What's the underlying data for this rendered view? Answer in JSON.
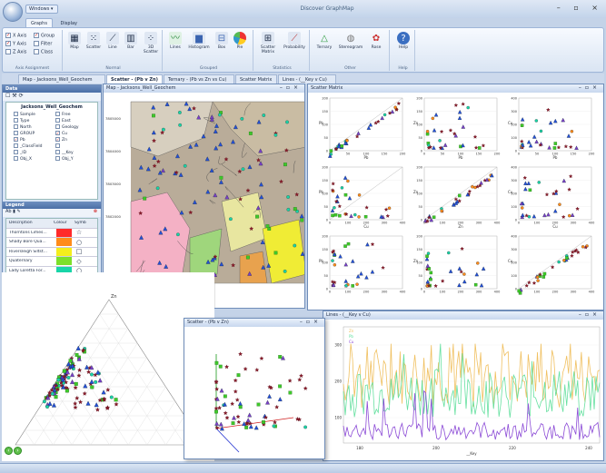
{
  "app": {
    "title": "Discover GraphMap",
    "menu_label": "Windows ▾",
    "window_controls": "– ▫ ×"
  },
  "ribbon": {
    "tabs": [
      "Graphs",
      "Display"
    ],
    "axis": {
      "checks": [
        "X Axis",
        "Y Axis",
        "Z Axis"
      ],
      "checks2": [
        "Group",
        "Filter",
        "Class"
      ],
      "label": "Axis Assignment"
    },
    "normal": {
      "items": [
        "Map",
        "Scatter",
        "Line",
        "Bar",
        "3D Scatter"
      ],
      "label": "Normal"
    },
    "grouped": {
      "items": [
        "Lines",
        "Histogram",
        "Box",
        "Pie"
      ],
      "label": "Grouped"
    },
    "statistics": {
      "items": [
        "Scatter Matrix",
        "Probability"
      ],
      "label": "Statistics"
    },
    "other": {
      "items": [
        "Ternary",
        "Stereogram",
        "Rose"
      ],
      "label": "Other"
    },
    "help": {
      "items": [
        "Help"
      ],
      "label": "Help"
    }
  },
  "doc_tabs": [
    "Map - Jacksons_Well_Geochem",
    "Scatter - (Pb v Zn)",
    "Ternary - (Pb vs Zn vs Cu)",
    "Scatter Matrix",
    "Lines - (__Key v Cu)"
  ],
  "data_panel": {
    "title": "Data",
    "dataset": "Jacksons_Well_Geochem",
    "fields": [
      [
        "Sample",
        false
      ],
      [
        "Free",
        false
      ],
      [
        "Type",
        false
      ],
      [
        "East",
        false
      ],
      [
        "North",
        false
      ],
      [
        "Geology",
        false
      ],
      [
        "GROUP",
        false
      ],
      [
        "Cu",
        true
      ],
      [
        "Pb",
        true
      ],
      [
        "Zn",
        true
      ],
      [
        "_ClassField",
        false
      ],
      [
        "",
        false
      ],
      [
        "_ID",
        false
      ],
      [
        "__Key",
        false
      ],
      [
        "Obj_X",
        false
      ],
      [
        "Obj_Y",
        false
      ]
    ]
  },
  "legend": {
    "title": "Legend",
    "col_desc": "Description",
    "col_colour": "Colour",
    "col_sym": "Symb",
    "rows": [
      {
        "desc": "Thorntons Limes...",
        "color": "#ff2a2a",
        "sym": "☆"
      },
      {
        "desc": "Shady Bore Qua...",
        "color": "#ff8c1a",
        "sym": "○"
      },
      {
        "desc": "Riversleigh Siltst...",
        "color": "#f4ee1d",
        "sym": "□"
      },
      {
        "desc": "Quaternary",
        "color": "#7de02a",
        "sym": "◇"
      },
      {
        "desc": "Lady Loretta For...",
        "color": "#18d5a8",
        "sym": "○"
      },
      {
        "desc": "Colorado",
        "color": "#1f3ef2",
        "sym": "△"
      },
      {
        "desc": "Border Waterhol...",
        "color": "#b82ad4",
        "sym": "△"
      }
    ]
  },
  "map": {
    "title": "Map - Jacksons_Well_Geochem",
    "y_ticks": [
      "7805000",
      "7804000",
      "7803000",
      "7802000"
    ],
    "x_ticks": [
      "2345000",
      "2360000"
    ]
  },
  "matrix": {
    "title": "Scatter Matrix",
    "cells": [
      {
        "r": 0,
        "c": 0,
        "xl": "Pb",
        "yl": "Pb",
        "yt": [
          "200",
          "150",
          "100",
          "50",
          "0"
        ],
        "xt": [
          "0",
          "50",
          "100",
          "150",
          "200"
        ]
      },
      {
        "r": 0,
        "c": 1,
        "xl": "Pb",
        "yl": "Zn",
        "yt": [
          "200",
          "150",
          "100",
          "50",
          "0"
        ],
        "xt": [
          "0",
          "50",
          "100",
          "150",
          "200"
        ]
      },
      {
        "r": 0,
        "c": 2,
        "xl": "Pb",
        "yl": "Cu",
        "yt": [
          "400",
          "300",
          "200",
          "100",
          "0"
        ],
        "xt": [
          "0",
          "50",
          "100",
          "150",
          "200"
        ]
      },
      {
        "r": 1,
        "c": 0,
        "xl": "Cu",
        "yl": "Pb",
        "yt": [
          "200",
          "150",
          "100",
          "50",
          "0"
        ],
        "xt": [
          "0",
          "100",
          "200",
          "300",
          "400"
        ]
      },
      {
        "r": 1,
        "c": 1,
        "xl": "Zn",
        "yl": "Zn",
        "yt": [
          "200",
          "150",
          "100",
          "50",
          "0"
        ],
        "xt": [
          "0",
          "100",
          "200",
          "300",
          "400"
        ]
      },
      {
        "r": 1,
        "c": 2,
        "xl": "Cu",
        "yl": "Cu",
        "yt": [
          "400",
          "300",
          "200",
          "100",
          "0"
        ],
        "xt": [
          "0",
          "100",
          "200",
          "300",
          "400"
        ]
      },
      {
        "r": 2,
        "c": 0,
        "xl": "",
        "yl": "Pb",
        "yt": [
          "200",
          "150",
          "100",
          "50",
          "0"
        ],
        "xt": [
          "0",
          "100",
          "200",
          "300",
          "400"
        ]
      },
      {
        "r": 2,
        "c": 1,
        "xl": "",
        "yl": "Zn",
        "yt": [
          "200",
          "150",
          "100",
          "50",
          "0"
        ],
        "xt": [
          "0",
          "100",
          "200",
          "300",
          "400"
        ]
      },
      {
        "r": 2,
        "c": 2,
        "xl": "",
        "yl": "Cu",
        "yt": [
          "400",
          "300",
          "200",
          "100",
          "0"
        ],
        "xt": [
          "0",
          "100",
          "200",
          "300",
          "400"
        ]
      }
    ]
  },
  "ternary": {
    "labels": [
      "Zn",
      "Pb",
      "Cu"
    ]
  },
  "scatter3d": {
    "title": "Scatter - (Pb v Zn)"
  },
  "lines": {
    "title": "Lines - (__Key v Cu)",
    "legend": [
      "Zn",
      "Pb",
      "Cu"
    ],
    "xlabel": "__Key",
    "yt": [
      "300",
      "200",
      "100"
    ],
    "xt": [
      "180",
      "200",
      "220",
      "240"
    ]
  }
}
